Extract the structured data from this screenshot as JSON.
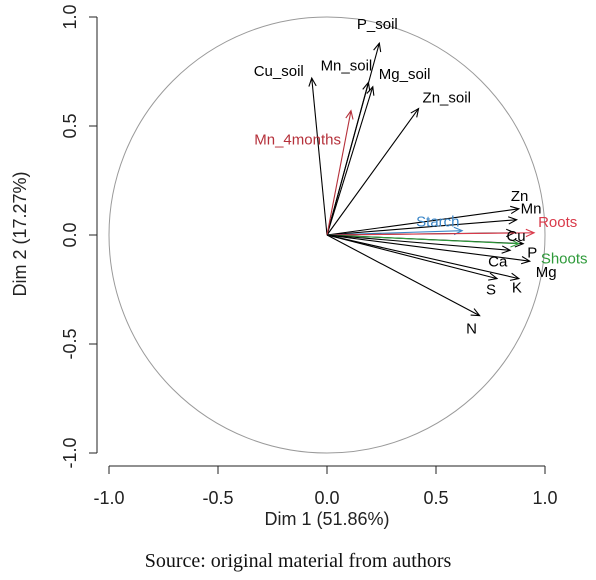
{
  "caption": "Source: original material from authors",
  "chart_data": {
    "type": "scatter",
    "subtype": "pca-correlation-circle",
    "xlabel": "Dim 1 (51.86%)",
    "ylabel": "Dim 2 (17.27%)",
    "xlim": [
      -1.0,
      1.0
    ],
    "ylim": [
      -1.0,
      1.0
    ],
    "xticks": [
      "-1.0",
      "-0.5",
      "0.0",
      "0.5",
      "1.0"
    ],
    "yticks": [
      "-1.0",
      "-0.5",
      "0.0",
      "0.5",
      "1.0"
    ],
    "unit_circle": true,
    "vectors": [
      {
        "label": "P_soil",
        "x": 0.24,
        "y": 0.88,
        "color": "#000000"
      },
      {
        "label": "Mn_soil",
        "x": 0.19,
        "y": 0.7,
        "color": "#000000"
      },
      {
        "label": "Cu_soil",
        "x": -0.07,
        "y": 0.72,
        "color": "#000000"
      },
      {
        "label": "Mg_soil",
        "x": 0.21,
        "y": 0.68,
        "color": "#000000"
      },
      {
        "label": "Zn_soil",
        "x": 0.42,
        "y": 0.58,
        "color": "#000000"
      },
      {
        "label": "Mn_4months",
        "x": 0.11,
        "y": 0.57,
        "color": "#b5303a"
      },
      {
        "label": "Zn",
        "x": 0.88,
        "y": 0.12,
        "color": "#000000"
      },
      {
        "label": "Mn",
        "x": 0.87,
        "y": 0.07,
        "color": "#000000"
      },
      {
        "label": "Starch",
        "x": 0.62,
        "y": 0.02,
        "color": "#3a86c8"
      },
      {
        "label": "Cu",
        "x": 0.86,
        "y": 0.01,
        "color": "#000000"
      },
      {
        "label": "Roots",
        "x": 0.95,
        "y": 0.01,
        "color": "#d93a4a"
      },
      {
        "label": "P",
        "x": 0.9,
        "y": -0.04,
        "color": "#000000"
      },
      {
        "label": "Shoots",
        "x": 0.88,
        "y": -0.04,
        "color": "#2e9a3a"
      },
      {
        "label": "Ca",
        "x": 0.84,
        "y": -0.07,
        "color": "#000000"
      },
      {
        "label": "Mg",
        "x": 0.93,
        "y": -0.12,
        "color": "#000000"
      },
      {
        "label": "K",
        "x": 0.88,
        "y": -0.2,
        "color": "#000000"
      },
      {
        "label": "S",
        "x": 0.78,
        "y": -0.2,
        "color": "#000000"
      },
      {
        "label": "N",
        "x": 0.7,
        "y": -0.37,
        "color": "#000000"
      }
    ]
  }
}
